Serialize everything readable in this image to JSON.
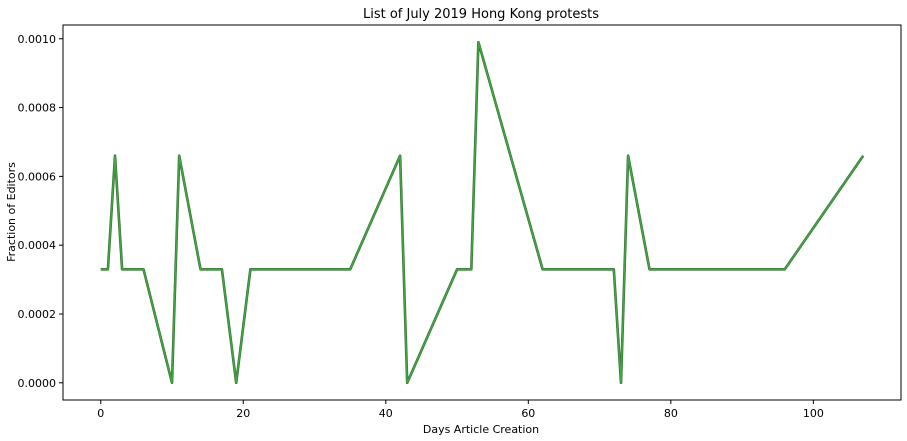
{
  "chart_data": {
    "type": "line",
    "title": "List of July 2019 Hong Kong protests",
    "xlabel": "Days Article Creation",
    "ylabel": "Fraction of Editors",
    "xlim": [
      -5.3,
      112.3
    ],
    "ylim": [
      -5e-05,
      0.00104
    ],
    "xticks": [
      0,
      20,
      40,
      60,
      80,
      100
    ],
    "xtick_labels": [
      "0",
      "20",
      "40",
      "60",
      "80",
      "100"
    ],
    "yticks": [
      0.0,
      0.0002,
      0.0004,
      0.0006,
      0.0008,
      0.001
    ],
    "ytick_labels": [
      "0.0000",
      "0.0002",
      "0.0004",
      "0.0006",
      "0.0008",
      "0.0010"
    ],
    "grid": false,
    "colors": {
      "series_dark": "#2f6e2f",
      "series_main": "#44a444",
      "axis": "#000000"
    },
    "series": [
      {
        "x": [
          0,
          1,
          2,
          3,
          6,
          10,
          11,
          14,
          17,
          19,
          21,
          35,
          42,
          43,
          50,
          52,
          53,
          62,
          72,
          73,
          74,
          77,
          96,
          107
        ],
        "y": [
          0.00033,
          0.00033,
          0.00066,
          0.00033,
          0.00033,
          0.0,
          0.00066,
          0.00033,
          0.00033,
          0.0,
          0.00033,
          0.00033,
          0.00066,
          0.0,
          0.00033,
          0.00033,
          0.00099,
          0.00033,
          0.00033,
          0.0,
          0.00066,
          0.00033,
          0.00033,
          0.00066
        ]
      }
    ]
  }
}
